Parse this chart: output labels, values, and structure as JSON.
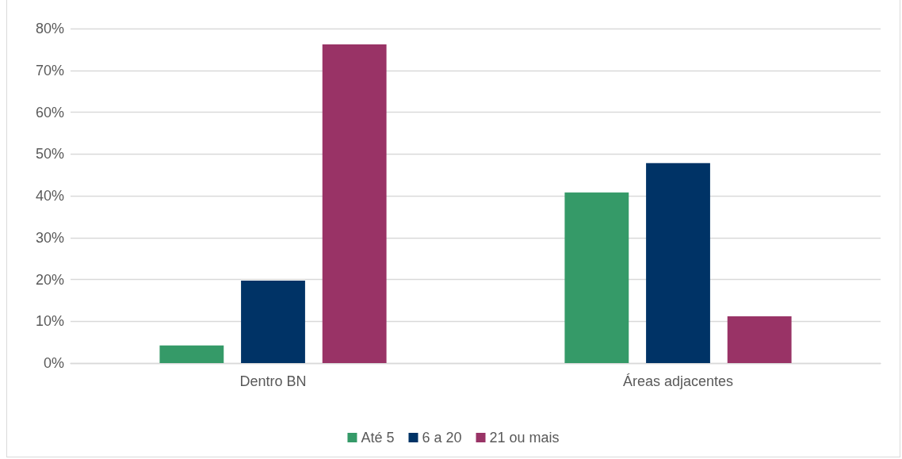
{
  "chart_data": {
    "type": "bar",
    "categories": [
      "Dentro BN",
      "Áreas adjacentes"
    ],
    "series": [
      {
        "name": "Até 5",
        "color": "#359a68",
        "values": [
          4.2,
          40.8
        ]
      },
      {
        "name": "6 a 20",
        "color": "#003366",
        "values": [
          19.7,
          47.8
        ]
      },
      {
        "name": "21 ou mais",
        "color": "#993366",
        "values": [
          76.2,
          11.2
        ]
      }
    ],
    "ylim": [
      0,
      80
    ],
    "yticks": [
      {
        "value": 0,
        "label": "0%"
      },
      {
        "value": 10,
        "label": "10%"
      },
      {
        "value": 20,
        "label": "20%"
      },
      {
        "value": 30,
        "label": "30%"
      },
      {
        "value": 40,
        "label": "40%"
      },
      {
        "value": 50,
        "label": "50%"
      },
      {
        "value": 60,
        "label": "60%"
      },
      {
        "value": 70,
        "label": "70%"
      },
      {
        "value": 80,
        "label": "80%"
      }
    ],
    "grid": "y",
    "legend": "bottom"
  }
}
